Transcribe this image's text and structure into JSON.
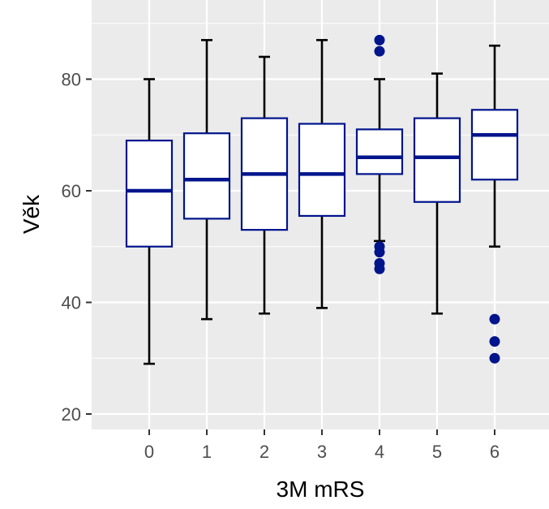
{
  "chart_data": {
    "type": "boxplot",
    "xlabel": "3M mRS",
    "ylabel": "Věk",
    "categories": [
      "0",
      "1",
      "2",
      "3",
      "4",
      "5",
      "6"
    ],
    "ylim": [
      17,
      91
    ],
    "yticks": [
      20,
      40,
      60,
      80
    ],
    "grid": true,
    "colors": {
      "panel_background": "#ebebeb",
      "gridline": "#ffffff",
      "box_outline": "#00148c",
      "box_fill": "#ffffff",
      "whisker": "#000000",
      "outlier": "#00148c"
    },
    "boxes": [
      {
        "category": "0",
        "whisker_low": 29,
        "q1": 50,
        "median": 60,
        "q3": 69,
        "whisker_high": 80,
        "outliers": []
      },
      {
        "category": "1",
        "whisker_low": 37,
        "q1": 55,
        "median": 62,
        "q3": 70.3,
        "whisker_high": 87,
        "outliers": []
      },
      {
        "category": "2",
        "whisker_low": 38,
        "q1": 53,
        "median": 63,
        "q3": 73,
        "whisker_high": 84,
        "outliers": []
      },
      {
        "category": "3",
        "whisker_low": 39,
        "q1": 55.5,
        "median": 63,
        "q3": 72,
        "whisker_high": 87,
        "outliers": []
      },
      {
        "category": "4",
        "whisker_low": 51,
        "q1": 63,
        "median": 66,
        "q3": 71,
        "whisker_high": 80,
        "outliers": [
          87,
          85,
          50,
          49,
          47,
          46
        ]
      },
      {
        "category": "5",
        "whisker_low": 38,
        "q1": 58,
        "median": 66,
        "q3": 73,
        "whisker_high": 81,
        "outliers": []
      },
      {
        "category": "6",
        "whisker_low": 50,
        "q1": 62,
        "median": 70,
        "q3": 74.5,
        "whisker_high": 86,
        "outliers": [
          37,
          33,
          30
        ]
      }
    ]
  }
}
